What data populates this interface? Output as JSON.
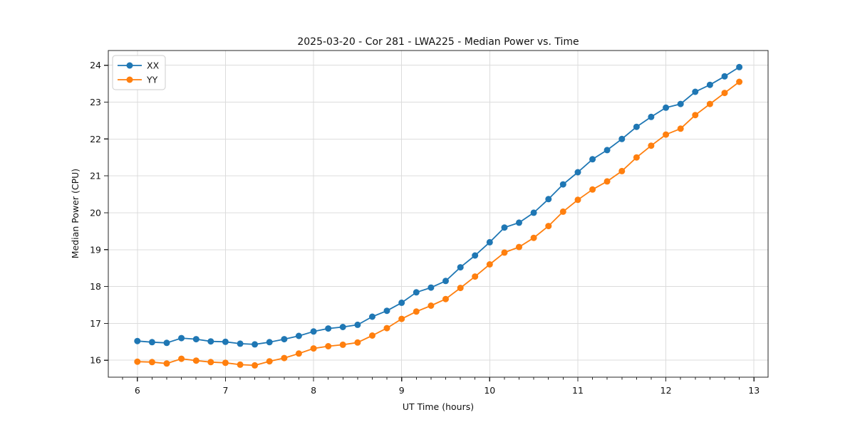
{
  "chart_data": {
    "type": "line",
    "title": "2025-03-20 - Cor 281 - LWA225 - Median Power vs. Time",
    "xlabel": "UT Time (hours)",
    "ylabel": "Median Power (CPU)",
    "xlim": [
      5.67,
      13.16
    ],
    "ylim": [
      15.54,
      24.4
    ],
    "x_major_ticks": [
      6,
      7,
      8,
      9,
      10,
      11,
      12,
      13
    ],
    "x_minor_tick_step": 0.16667,
    "y_major_ticks": [
      16,
      17,
      18,
      19,
      20,
      21,
      22,
      23,
      24
    ],
    "grid": "major-both",
    "grid_color": "#dcdcdc",
    "spine_color": "#262626",
    "legend_position": "upper-left",
    "marker": "circle",
    "x": [
      6.0,
      6.167,
      6.333,
      6.5,
      6.667,
      6.833,
      7.0,
      7.167,
      7.333,
      7.5,
      7.667,
      7.833,
      8.0,
      8.167,
      8.333,
      8.5,
      8.667,
      8.833,
      9.0,
      9.167,
      9.333,
      9.5,
      9.667,
      9.833,
      10.0,
      10.167,
      10.333,
      10.5,
      10.667,
      10.833,
      11.0,
      11.167,
      11.333,
      11.5,
      11.667,
      11.833,
      12.0,
      12.167,
      12.333,
      12.5,
      12.667,
      12.833
    ],
    "series": [
      {
        "name": "XX",
        "color": "#1f77b4",
        "values": [
          16.52,
          16.49,
          16.47,
          16.6,
          16.57,
          16.51,
          16.5,
          16.45,
          16.43,
          16.49,
          16.57,
          16.66,
          16.78,
          16.86,
          16.9,
          16.96,
          17.18,
          17.34,
          17.56,
          17.84,
          17.97,
          18.15,
          18.52,
          18.84,
          19.2,
          19.6,
          19.73,
          20.0,
          20.37,
          20.77,
          21.1,
          21.45,
          21.7,
          22.0,
          22.33,
          22.6,
          22.85,
          22.95,
          23.28,
          23.47,
          23.7,
          23.95
        ]
      },
      {
        "name": "YY",
        "color": "#ff7f0e",
        "values": [
          15.96,
          15.95,
          15.91,
          16.04,
          15.99,
          15.95,
          15.93,
          15.88,
          15.86,
          15.97,
          16.06,
          16.18,
          16.32,
          16.38,
          16.42,
          16.48,
          16.67,
          16.87,
          17.12,
          17.32,
          17.48,
          17.66,
          17.96,
          18.27,
          18.6,
          18.92,
          19.07,
          19.32,
          19.64,
          20.03,
          20.35,
          20.63,
          20.85,
          21.13,
          21.5,
          21.82,
          22.12,
          22.28,
          22.65,
          22.95,
          23.25,
          23.55
        ]
      }
    ]
  }
}
